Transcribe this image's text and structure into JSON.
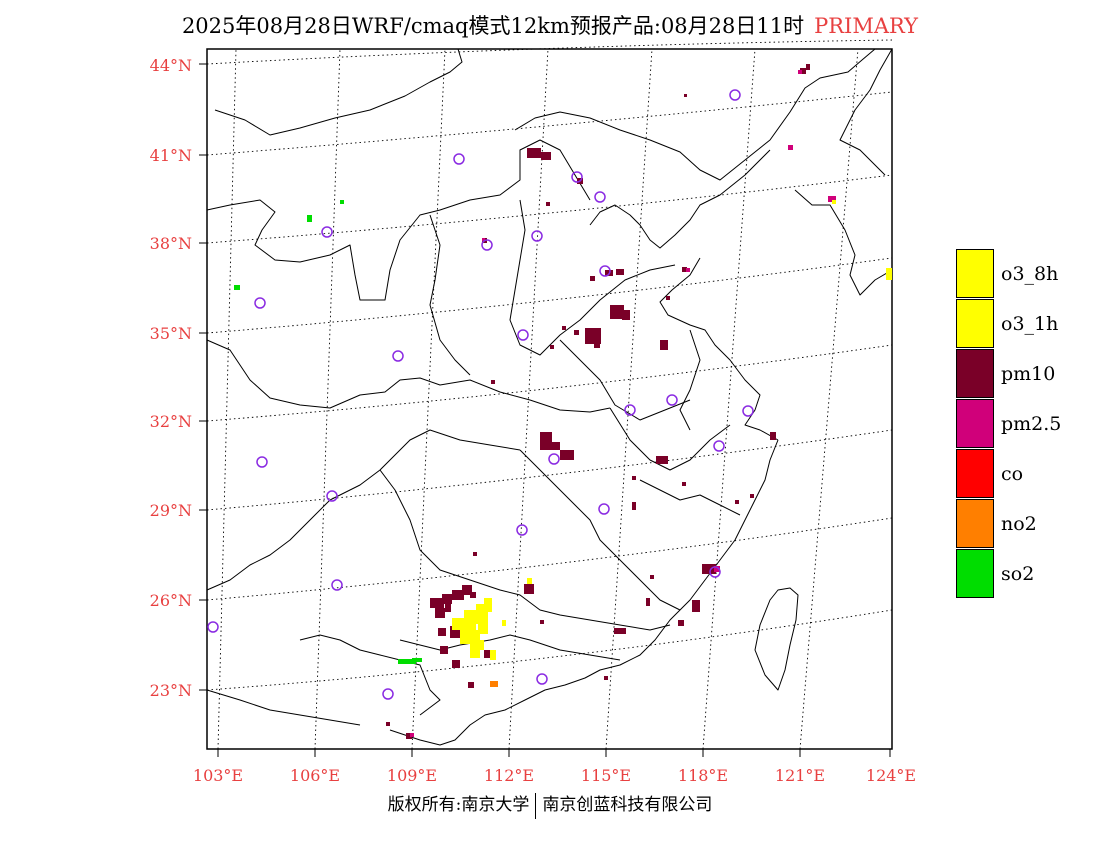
{
  "title": {
    "text": "2025年08月28日WRF/cmaq模式12km预报产品:08月28日11时",
    "tag": "PRIMARY",
    "tag_color": "#e84040"
  },
  "axes": {
    "lat_labels": [
      "44°N",
      "41°N",
      "38°N",
      "35°N",
      "32°N",
      "29°N",
      "26°N",
      "23°N"
    ],
    "lon_labels": [
      "103°E",
      "106°E",
      "109°E",
      "112°E",
      "115°E",
      "118°E",
      "121°E",
      "124°E"
    ],
    "label_color": "#e84040"
  },
  "legend": {
    "items": [
      {
        "label": "o3_8h",
        "color": "#ffff00"
      },
      {
        "label": "o3_1h",
        "color": "#ffff00"
      },
      {
        "label": "pm10",
        "color": "#7a0028"
      },
      {
        "label": "pm2.5",
        "color": "#d0007a"
      },
      {
        "label": "co",
        "color": "#ff0000"
      },
      {
        "label": "no2",
        "color": "#ff7f00"
      },
      {
        "label": "so2",
        "color": "#00dd00"
      }
    ]
  },
  "footer": {
    "left": "版权所有:南京大学",
    "right": "南京创蓝科技有限公司"
  },
  "colors": {
    "station_marker": "#8a2be2",
    "pm10": "#7a0028",
    "pm25": "#d0007a",
    "o3": "#ffff00",
    "so2": "#00dd00",
    "no2": "#ff7f00",
    "co": "#ff0000"
  }
}
